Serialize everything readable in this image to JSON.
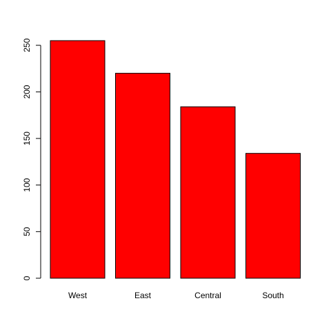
{
  "chart_data": {
    "type": "bar",
    "title": "",
    "xlabel": "",
    "ylabel": "",
    "categories": [
      "West",
      "East",
      "Central",
      "South"
    ],
    "values": [
      255,
      220,
      184,
      134
    ],
    "ylim": [
      0,
      255
    ],
    "yticks": [
      0,
      50,
      100,
      150,
      200,
      250
    ],
    "bar_color": "#ff0000",
    "bar_border_color": "#000000",
    "grid": false,
    "legend": "none"
  }
}
